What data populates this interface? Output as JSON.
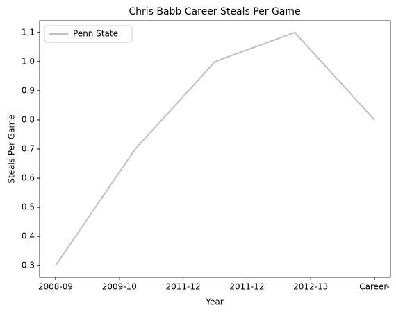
{
  "chart_data": {
    "type": "line",
    "title": "Chris Babb Career Steals Per Game",
    "xlabel": "Year",
    "ylabel": "Steals Per Game",
    "x": [
      0,
      1,
      2,
      3,
      4
    ],
    "series": [
      {
        "name": "Penn State",
        "color": "#bfbfbf",
        "values": [
          0.3,
          0.7,
          1.0,
          1.1,
          0.8
        ]
      }
    ],
    "xlim": [
      -0.2,
      4.2
    ],
    "xticks": [
      {
        "value": 0,
        "label": "2008-09"
      },
      {
        "value": 0.8,
        "label": "2009-10"
      },
      {
        "value": 1.6,
        "label": "2011-12"
      },
      {
        "value": 2.4,
        "label": "2011-12"
      },
      {
        "value": 3.2,
        "label": "2012-13"
      },
      {
        "value": 4.0,
        "label": "Career-"
      }
    ],
    "ylim": [
      0.26,
      1.14
    ],
    "yticks": [
      0.3,
      0.4,
      0.5,
      0.6,
      0.7,
      0.8,
      0.9,
      {
        "value": 1.0,
        "label": "1.0"
      },
      1.1
    ],
    "legend": "upper left"
  }
}
